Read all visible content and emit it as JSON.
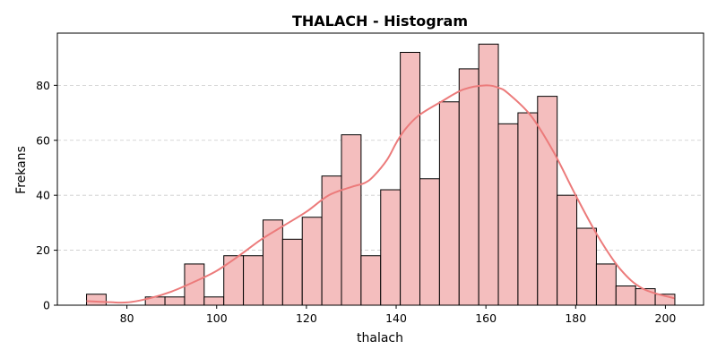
{
  "chart_data": {
    "type": "bar",
    "title": "THALACH - Histogram",
    "xlabel": "thalach",
    "ylabel": "Frekans",
    "xlim": [
      64.5,
      208.5
    ],
    "ylim": [
      0,
      99
    ],
    "x_ticks": [
      80,
      100,
      120,
      140,
      160,
      180,
      200
    ],
    "y_ticks": [
      0,
      20,
      40,
      60,
      80
    ],
    "grid": "y-dashed",
    "bins": {
      "start": 71,
      "width": 4.37,
      "counts": [
        4,
        0,
        0,
        3,
        3,
        15,
        3,
        18,
        18,
        31,
        24,
        32,
        47,
        62,
        18,
        42,
        92,
        46,
        74,
        86,
        95,
        66,
        70,
        76,
        40,
        28,
        15,
        7,
        6,
        4
      ]
    },
    "kde": {
      "x": [
        71,
        75,
        80,
        85,
        90,
        95,
        100,
        105,
        110,
        115,
        120,
        125,
        130,
        133,
        135,
        138,
        140,
        142,
        145,
        150,
        155,
        160,
        163,
        165,
        170,
        175,
        180,
        185,
        190,
        195,
        202
      ],
      "y": [
        1.5,
        1.2,
        1,
        2.5,
        5,
        8.5,
        12.5,
        18,
        24,
        29,
        34,
        40,
        43,
        44.5,
        47,
        53,
        59,
        64,
        69,
        74,
        78.5,
        80,
        79,
        77,
        69,
        56,
        40,
        25,
        13,
        6,
        2.5
      ]
    },
    "colors": {
      "bar_fill": "#f4bebe",
      "bar_edge": "#000000",
      "kde_line": "#ec7b7b",
      "grid": "#cccccc"
    }
  }
}
